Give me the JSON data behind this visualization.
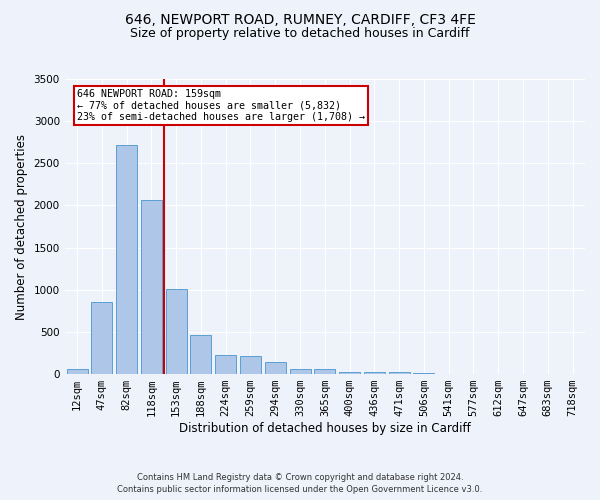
{
  "title": "646, NEWPORT ROAD, RUMNEY, CARDIFF, CF3 4FE",
  "subtitle": "Size of property relative to detached houses in Cardiff",
  "xlabel": "Distribution of detached houses by size in Cardiff",
  "ylabel": "Number of detached properties",
  "footnote1": "Contains HM Land Registry data © Crown copyright and database right 2024.",
  "footnote2": "Contains public sector information licensed under the Open Government Licence v3.0.",
  "bar_labels": [
    "12sqm",
    "47sqm",
    "82sqm",
    "118sqm",
    "153sqm",
    "188sqm",
    "224sqm",
    "259sqm",
    "294sqm",
    "330sqm",
    "365sqm",
    "400sqm",
    "436sqm",
    "471sqm",
    "506sqm",
    "541sqm",
    "577sqm",
    "612sqm",
    "647sqm",
    "683sqm",
    "718sqm"
  ],
  "bar_values": [
    60,
    850,
    2720,
    2060,
    1010,
    460,
    230,
    215,
    140,
    65,
    55,
    30,
    25,
    20,
    10,
    5,
    3,
    3,
    2,
    2,
    1
  ],
  "bar_color": "#aec6e8",
  "bar_edge_color": "#5a9fd4",
  "ylim": [
    0,
    3500
  ],
  "yticks": [
    0,
    500,
    1000,
    1500,
    2000,
    2500,
    3000,
    3500
  ],
  "annotation_text": "646 NEWPORT ROAD: 159sqm\n← 77% of detached houses are smaller (5,832)\n23% of semi-detached houses are larger (1,708) →",
  "vline_x_index": 4,
  "vline_color": "#cc0000",
  "annotation_box_color": "#cc0000",
  "background_color": "#eef2fb",
  "grid_color": "#ffffff",
  "title_fontsize": 10,
  "subtitle_fontsize": 9,
  "tick_fontsize": 7.5,
  "label_fontsize": 8.5,
  "footnote_fontsize": 6.0
}
